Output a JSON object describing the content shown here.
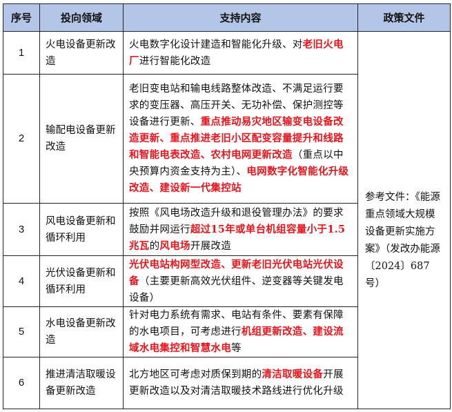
{
  "header": {
    "col_no": "序号",
    "col_area": "投向领域",
    "col_content": "支持内容",
    "col_policy": "政策文件"
  },
  "policy": "参考文件：《能源重点领域大规模设备更新实施方案》（发改办能源〔2024〕687号）",
  "rows": [
    {
      "no": "1",
      "area": "火电设备更新改造",
      "content": [
        {
          "text": "火电数字化设计建造和智能化升级、对",
          "red": false
        },
        {
          "text": "老旧火电厂",
          "red": true
        },
        {
          "text": "进行智能化改造",
          "red": false
        }
      ]
    },
    {
      "no": "2",
      "area": "输配电设备更新改造",
      "content": [
        {
          "text": "老旧变电站和输电线路整体改造、不满足运行要求的变压器、高压开关、无功补偿、保护测控等设备进行更新、",
          "red": false
        },
        {
          "text": "重点推动易灾地区输变电设备改造更新、重点推进老旧小区配变容量提升和线路和智能电表改造、农村电网更新改造",
          "red": true
        },
        {
          "text": "（重点以中央预算内资金支持为主）、",
          "red": false
        },
        {
          "text": "电网数字化智能化升级改造、建设新一代集控站",
          "red": true
        }
      ]
    },
    {
      "no": "3",
      "area": "风电设备更新和循环利用",
      "content": [
        {
          "text": "按照《风电场改造升级和退役管理办法》的要求鼓励并网运行",
          "red": false
        },
        {
          "text": "超过15年或单台机组容量小于1.5兆瓦",
          "red": true
        },
        {
          "text": "的",
          "red": false
        },
        {
          "text": "风电场",
          "red": true
        },
        {
          "text": "开展改造",
          "red": false
        }
      ]
    },
    {
      "no": "4",
      "area": "光伏设备更新和循环利用",
      "content": [
        {
          "text": "光伏电站构网型改造、更新老旧光伏电站光伏设备",
          "red": true
        },
        {
          "text": "（主要更新高效光伏组件、逆变器等关键发电设备）",
          "red": false
        }
      ]
    },
    {
      "no": "5",
      "area": "水电设备更新改造",
      "content": [
        {
          "text": "针对电力系统有需求、电站有条件、要素有保障的水电项目，可考虑进行",
          "red": false
        },
        {
          "text": "机组更新改造、建设流域水电集控和智慧水电",
          "red": true
        },
        {
          "text": "等",
          "red": false
        }
      ]
    },
    {
      "no": "6",
      "area": "推进清洁取暖设备更新改造",
      "content": [
        {
          "text": "北方地区可考虑对质保到期的",
          "red": false
        },
        {
          "text": "清洁取暖设备",
          "red": true
        },
        {
          "text": "开展更新改造以及对清洁取暖技术路线进行优化升级",
          "red": false
        }
      ]
    }
  ]
}
